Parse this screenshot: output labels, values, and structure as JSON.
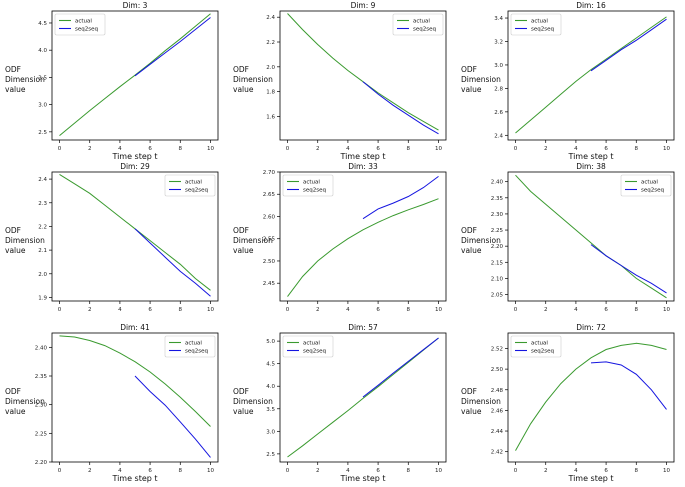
{
  "chart_data": [
    {
      "type": "line",
      "title": "Dim: 3",
      "ylabel": "ODF\nDimension\nvalue",
      "xlabel": "Time step t",
      "xlim": [
        -0.5,
        10.5
      ],
      "ylim": [
        2.35,
        4.72
      ],
      "xticks": [
        0,
        2,
        4,
        6,
        8,
        10
      ],
      "yticks": [
        2.5,
        3.0,
        3.5,
        4.0,
        4.5
      ],
      "ytick_labels": [
        "2.5",
        "3.0",
        "3.5",
        "4.0",
        "4.5"
      ],
      "legend": "top-left",
      "series": [
        {
          "name": "actual",
          "color": "#3a9a2f",
          "x": [
            0,
            1,
            2,
            3,
            4,
            5,
            6,
            7,
            8,
            9,
            10
          ],
          "values": [
            2.43,
            2.66,
            2.89,
            3.11,
            3.33,
            3.54,
            3.76,
            3.99,
            4.21,
            4.44,
            4.67
          ]
        },
        {
          "name": "seq2seq",
          "color": "#1515e0",
          "x": [
            5,
            6,
            7,
            8,
            9,
            10
          ],
          "values": [
            3.53,
            3.74,
            3.95,
            4.16,
            4.38,
            4.6
          ]
        }
      ]
    },
    {
      "type": "line",
      "title": "Dim: 9",
      "ylabel": "ODF\nDimension\nvalue",
      "xlabel": "Time step t",
      "xlim": [
        -0.5,
        10.5
      ],
      "ylim": [
        1.41,
        2.45
      ],
      "xticks": [
        0,
        2,
        4,
        6,
        8,
        10
      ],
      "yticks": [
        1.6,
        1.8,
        2.0,
        2.2,
        2.4
      ],
      "ytick_labels": [
        "1.6",
        "1.8",
        "2.0",
        "2.2",
        "2.4"
      ],
      "legend": "top-right",
      "series": [
        {
          "name": "actual",
          "color": "#3a9a2f",
          "x": [
            0,
            1,
            2,
            3,
            4,
            5,
            6,
            7,
            8,
            9,
            10
          ],
          "values": [
            2.43,
            2.3,
            2.18,
            2.07,
            1.97,
            1.88,
            1.79,
            1.71,
            1.63,
            1.56,
            1.49
          ]
        },
        {
          "name": "seq2seq",
          "color": "#1515e0",
          "x": [
            5,
            6,
            7,
            8,
            9,
            10
          ],
          "values": [
            1.88,
            1.78,
            1.69,
            1.61,
            1.53,
            1.46
          ]
        }
      ]
    },
    {
      "type": "line",
      "title": "Dim: 16",
      "ylabel": "ODF\nDimension\nvalue",
      "xlabel": "Time step t",
      "xlim": [
        -0.5,
        10.5
      ],
      "ylim": [
        2.36,
        3.46
      ],
      "xticks": [
        0,
        2,
        4,
        6,
        8,
        10
      ],
      "yticks": [
        2.4,
        2.6,
        2.8,
        3.0,
        3.2,
        3.4
      ],
      "ytick_labels": [
        "2.4",
        "2.6",
        "2.8",
        "3.0",
        "3.2",
        "3.4"
      ],
      "legend": "top-left",
      "series": [
        {
          "name": "actual",
          "color": "#3a9a2f",
          "x": [
            0,
            1,
            2,
            3,
            4,
            5,
            6,
            7,
            8,
            9,
            10
          ],
          "values": [
            2.42,
            2.53,
            2.64,
            2.75,
            2.86,
            2.96,
            3.05,
            3.14,
            3.23,
            3.32,
            3.41
          ]
        },
        {
          "name": "seq2seq",
          "color": "#1515e0",
          "x": [
            5,
            6,
            7,
            8,
            9,
            10
          ],
          "values": [
            2.95,
            3.04,
            3.13,
            3.21,
            3.3,
            3.39
          ]
        }
      ]
    },
    {
      "type": "line",
      "title": "Dim: 29",
      "ylabel": "ODF\nDimension\nvalue",
      "xlabel": "",
      "xlim": [
        -0.5,
        10.5
      ],
      "ylim": [
        1.885,
        2.43
      ],
      "xticks": [
        0,
        2,
        4,
        6,
        8,
        10
      ],
      "yticks": [
        1.9,
        2.0,
        2.1,
        2.2,
        2.3,
        2.4
      ],
      "ytick_labels": [
        "1.9",
        "2.0",
        "2.1",
        "2.2",
        "2.3",
        "2.4"
      ],
      "legend": "top-right",
      "series": [
        {
          "name": "actual",
          "color": "#3a9a2f",
          "x": [
            0,
            1,
            2,
            3,
            4,
            5,
            6,
            7,
            8,
            9,
            10
          ],
          "values": [
            2.42,
            2.38,
            2.34,
            2.29,
            2.24,
            2.19,
            2.14,
            2.09,
            2.04,
            1.98,
            1.93
          ]
        },
        {
          "name": "seq2seq",
          "color": "#1515e0",
          "x": [
            5,
            6,
            7,
            8,
            9,
            10
          ],
          "values": [
            2.19,
            2.13,
            2.07,
            2.01,
            1.96,
            1.905
          ]
        }
      ]
    },
    {
      "type": "line",
      "title": "Dim: 33",
      "ylabel": "ODF\nDimension\nvalue",
      "xlabel": "",
      "xlim": [
        -0.5,
        10.5
      ],
      "ylim": [
        2.41,
        2.7
      ],
      "xticks": [
        0,
        2,
        4,
        6,
        8,
        10
      ],
      "yticks": [
        2.45,
        2.5,
        2.55,
        2.6,
        2.65,
        2.7
      ],
      "ytick_labels": [
        "2.45",
        "2.50",
        "2.55",
        "2.60",
        "2.65",
        "2.70"
      ],
      "legend": "top-left",
      "series": [
        {
          "name": "actual",
          "color": "#3a9a2f",
          "x": [
            0,
            1,
            2,
            3,
            4,
            5,
            6,
            7,
            8,
            9,
            10
          ],
          "values": [
            2.42,
            2.465,
            2.5,
            2.527,
            2.55,
            2.57,
            2.587,
            2.602,
            2.615,
            2.627,
            2.64
          ]
        },
        {
          "name": "seq2seq",
          "color": "#1515e0",
          "x": [
            5,
            6,
            7,
            8,
            9,
            10
          ],
          "values": [
            2.595,
            2.617,
            2.63,
            2.645,
            2.665,
            2.69
          ]
        }
      ]
    },
    {
      "type": "line",
      "title": "Dim: 38",
      "ylabel": "ODF\nDimension\nvalue",
      "xlabel": "",
      "xlim": [
        -0.5,
        10.5
      ],
      "ylim": [
        2.03,
        2.43
      ],
      "xticks": [
        0,
        2,
        4,
        6,
        8,
        10
      ],
      "yticks": [
        2.05,
        2.1,
        2.15,
        2.2,
        2.25,
        2.3,
        2.35,
        2.4
      ],
      "ytick_labels": [
        "2.05",
        "2.10",
        "2.15",
        "2.20",
        "2.25",
        "2.30",
        "2.35",
        "2.40"
      ],
      "legend": "top-right",
      "series": [
        {
          "name": "actual",
          "color": "#3a9a2f",
          "x": [
            0,
            1,
            2,
            3,
            4,
            5,
            6,
            7,
            8,
            9,
            10
          ],
          "values": [
            2.42,
            2.37,
            2.33,
            2.29,
            2.25,
            2.21,
            2.17,
            2.14,
            2.1,
            2.07,
            2.04
          ]
        },
        {
          "name": "seq2seq",
          "color": "#1515e0",
          "x": [
            5,
            6,
            7,
            8,
            9,
            10
          ],
          "values": [
            2.205,
            2.17,
            2.14,
            2.11,
            2.085,
            2.055
          ]
        }
      ]
    },
    {
      "type": "line",
      "title": "Dim: 41",
      "ylabel": "ODF\nDimension\nvalue",
      "xlabel": "Time step t",
      "xlim": [
        -0.5,
        10.5
      ],
      "ylim": [
        2.2,
        2.425
      ],
      "xticks": [
        0,
        2,
        4,
        6,
        8,
        10
      ],
      "yticks": [
        2.2,
        2.25,
        2.3,
        2.35,
        2.4
      ],
      "ytick_labels": [
        "2.20",
        "2.25",
        "2.30",
        "2.35",
        "2.40"
      ],
      "legend": "top-right",
      "series": [
        {
          "name": "actual",
          "color": "#3a9a2f",
          "x": [
            0,
            1,
            2,
            3,
            4,
            5,
            6,
            7,
            8,
            9,
            10
          ],
          "values": [
            2.42,
            2.418,
            2.412,
            2.403,
            2.39,
            2.375,
            2.357,
            2.336,
            2.313,
            2.288,
            2.262
          ]
        },
        {
          "name": "seq2seq",
          "color": "#1515e0",
          "x": [
            5,
            6,
            7,
            8,
            9,
            10
          ],
          "values": [
            2.35,
            2.323,
            2.299,
            2.27,
            2.24,
            2.208
          ]
        }
      ]
    },
    {
      "type": "line",
      "title": "Dim: 57",
      "ylabel": "ODF\nDimension\nvalue",
      "xlabel": "Time step t",
      "xlim": [
        -0.5,
        10.5
      ],
      "ylim": [
        2.32,
        5.18
      ],
      "xticks": [
        0,
        2,
        4,
        6,
        8,
        10
      ],
      "yticks": [
        2.5,
        3.0,
        3.5,
        4.0,
        4.5,
        5.0
      ],
      "ytick_labels": [
        "2.5",
        "3.0",
        "3.5",
        "4.0",
        "4.5",
        "5.0"
      ],
      "legend": "top-left",
      "series": [
        {
          "name": "actual",
          "color": "#3a9a2f",
          "x": [
            0,
            1,
            2,
            3,
            4,
            5,
            6,
            7,
            8,
            9,
            10
          ],
          "values": [
            2.43,
            2.68,
            2.94,
            3.2,
            3.46,
            3.73,
            3.99,
            4.26,
            4.53,
            4.8,
            5.07
          ]
        },
        {
          "name": "seq2seq",
          "color": "#1515e0",
          "x": [
            5,
            6,
            7,
            8,
            9,
            10
          ],
          "values": [
            3.76,
            4.02,
            4.29,
            4.55,
            4.81,
            5.07
          ]
        }
      ]
    },
    {
      "type": "line",
      "title": "Dim: 72",
      "ylabel": "ODF\nDimension\nvalue",
      "xlabel": "Time step t",
      "xlim": [
        -0.5,
        10.5
      ],
      "ylim": [
        2.41,
        2.535
      ],
      "xticks": [
        0,
        2,
        4,
        6,
        8,
        10
      ],
      "yticks": [
        2.42,
        2.44,
        2.46,
        2.48,
        2.5,
        2.52
      ],
      "ytick_labels": [
        "2.42",
        "2.44",
        "2.46",
        "2.48",
        "2.50",
        "2.52"
      ],
      "legend": "top-left",
      "series": [
        {
          "name": "actual",
          "color": "#3a9a2f",
          "x": [
            0,
            1,
            2,
            3,
            4,
            5,
            6,
            7,
            8,
            9,
            10
          ],
          "values": [
            2.421,
            2.447,
            2.468,
            2.486,
            2.5,
            2.511,
            2.519,
            2.523,
            2.525,
            2.523,
            2.519
          ]
        },
        {
          "name": "seq2seq",
          "color": "#1515e0",
          "x": [
            5,
            6,
            7,
            8,
            9,
            10
          ],
          "values": [
            2.506,
            2.507,
            2.504,
            2.495,
            2.48,
            2.461
          ]
        }
      ]
    }
  ]
}
